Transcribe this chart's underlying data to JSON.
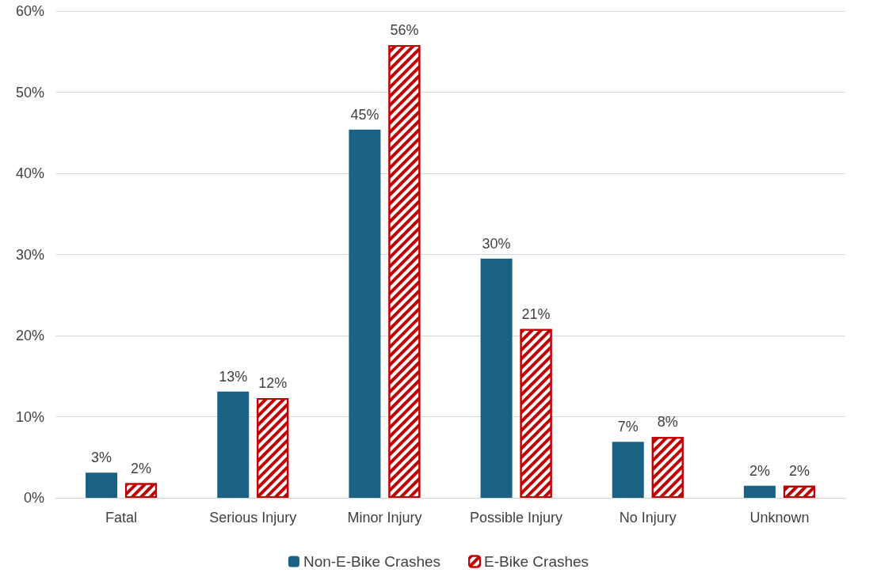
{
  "chart_data": {
    "type": "bar",
    "categories": [
      "Fatal",
      "Serious Injury",
      "Minor Injury",
      "Possible Injury",
      "No Injury",
      "Unknown"
    ],
    "series": [
      {
        "name": "Non-E-Bike Crashes",
        "color": "#1b6184",
        "values": [
          3.1,
          13.1,
          45.4,
          29.5,
          6.9,
          1.5
        ],
        "value_labels": [
          "3%",
          "13%",
          "45%",
          "30%",
          "7%",
          "2%"
        ]
      },
      {
        "name": "E-Bike Crashes",
        "color": "#c00000",
        "values": [
          1.8,
          12.3,
          55.8,
          20.8,
          7.5,
          1.5
        ],
        "value_labels": [
          "2%",
          "12%",
          "56%",
          "21%",
          "8%",
          "2%"
        ]
      }
    ],
    "ylim": [
      0,
      60
    ],
    "yticks": [
      {
        "value": 0,
        "label": "0%"
      },
      {
        "value": 10,
        "label": "10%"
      },
      {
        "value": 20,
        "label": "20%"
      },
      {
        "value": 30,
        "label": "30%"
      },
      {
        "value": 40,
        "label": "40%"
      },
      {
        "value": 50,
        "label": "50%"
      },
      {
        "value": 60,
        "label": "60%"
      }
    ],
    "grid": "y",
    "legend": "bottom"
  }
}
